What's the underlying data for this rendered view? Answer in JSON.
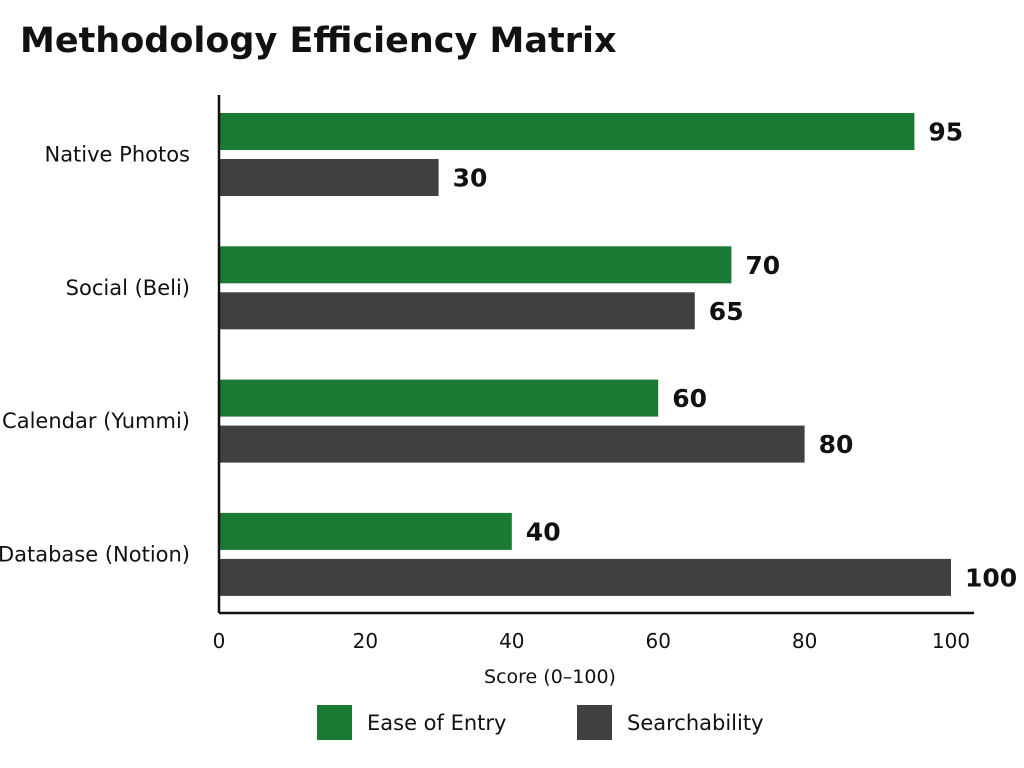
{
  "chart_data": {
    "type": "bar",
    "orientation": "horizontal",
    "title": "Methodology Efficiency Matrix",
    "categories": [
      "Native Photos",
      "Social (Beli)",
      "Calendar (Yummi)",
      "Database (Notion)"
    ],
    "series": [
      {
        "name": "Ease of Entry",
        "color": "#1a7a34",
        "values": [
          95,
          70,
          60,
          40
        ]
      },
      {
        "name": "Searchability",
        "color": "#404040",
        "values": [
          30,
          65,
          80,
          100
        ]
      }
    ],
    "xlabel": "Score (0–100)",
    "ylabel": "",
    "xlim": [
      0,
      100
    ],
    "xticks": [
      0,
      20,
      40,
      60,
      80,
      100
    ],
    "grid": false,
    "legend_position": "bottom"
  }
}
